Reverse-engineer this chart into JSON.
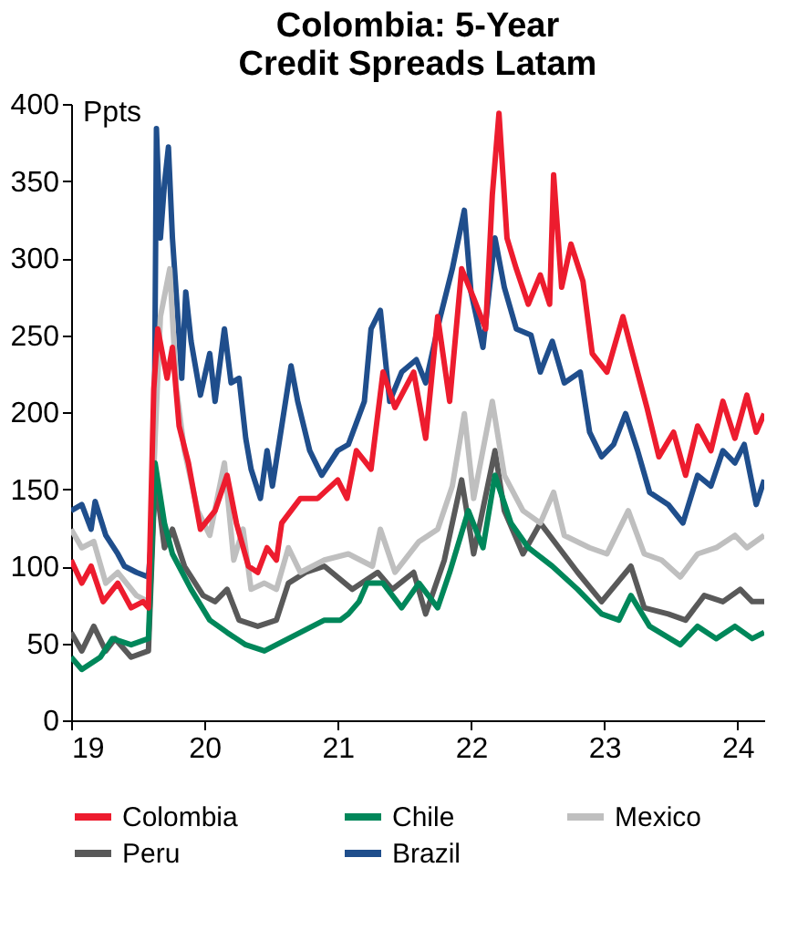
{
  "chart_data": {
    "type": "line",
    "title": "Colombia: 5-Year\nCredit Spreads Latam",
    "ylabel": "Ppts",
    "xlim": [
      19,
      24.2
    ],
    "xticks": [
      19,
      20,
      21,
      22,
      23,
      24
    ],
    "ylim": [
      0,
      400
    ],
    "yticks": [
      0,
      50,
      100,
      150,
      200,
      250,
      300,
      350,
      400
    ],
    "grid": false,
    "legend": "bottom",
    "marker": "none",
    "line_style": "solid",
    "series": [
      {
        "name": "Colombia",
        "color": "#ed1c2e",
        "x": [
          19.0,
          19.08,
          19.15,
          19.24,
          19.35,
          19.45,
          19.54,
          19.58,
          19.62,
          19.65,
          19.72,
          19.76,
          19.81,
          19.88,
          19.97,
          20.08,
          20.17,
          20.24,
          20.33,
          20.4,
          20.47,
          20.54,
          20.58,
          20.72,
          20.85,
          21.0,
          21.07,
          21.14,
          21.25,
          21.34,
          21.43,
          21.57,
          21.66,
          21.75,
          21.84,
          21.93,
          22.02,
          22.11,
          22.16,
          22.21,
          22.27,
          22.34,
          22.43,
          22.52,
          22.59,
          22.62,
          22.68,
          22.75,
          22.84,
          22.91,
          23.02,
          23.14,
          23.2,
          23.32,
          23.41,
          23.52,
          23.61,
          23.7,
          23.8,
          23.89,
          23.98,
          24.07,
          24.14,
          24.2
        ],
        "values": [
          104,
          89,
          100,
          77,
          89,
          73,
          77,
          73,
          215,
          254,
          222,
          242,
          191,
          167,
          124,
          136,
          159,
          128,
          100,
          96,
          112,
          104,
          128,
          144,
          144,
          156,
          144,
          175,
          163,
          226,
          203,
          226,
          183,
          262,
          207,
          293,
          274,
          254,
          341,
          394,
          313,
          293,
          270,
          289,
          270,
          354,
          281,
          309,
          285,
          238,
          226,
          262,
          242,
          203,
          171,
          187,
          159,
          191,
          175,
          207,
          183,
          211,
          187,
          199
        ]
      },
      {
        "name": "Chile",
        "color": "#00875a",
        "x": [
          19.0,
          19.08,
          19.22,
          19.31,
          19.45,
          19.58,
          19.63,
          19.7,
          19.76,
          19.9,
          20.04,
          20.17,
          20.31,
          20.45,
          20.54,
          20.72,
          20.9,
          21.02,
          21.08,
          21.16,
          21.22,
          21.34,
          21.48,
          21.61,
          21.75,
          21.84,
          21.98,
          22.09,
          22.18,
          22.3,
          22.43,
          22.61,
          22.8,
          22.98,
          23.11,
          23.2,
          23.34,
          23.57,
          23.7,
          23.84,
          23.98,
          24.11,
          24.2
        ],
        "values": [
          41,
          33,
          41,
          53,
          49,
          53,
          167,
          128,
          108,
          85,
          65,
          57,
          49,
          45,
          49,
          57,
          65,
          65,
          69,
          77,
          89,
          89,
          73,
          89,
          73,
          96,
          136,
          112,
          159,
          128,
          112,
          100,
          85,
          69,
          65,
          81,
          61,
          49,
          61,
          53,
          61,
          53,
          57
        ]
      },
      {
        "name": "Mexico",
        "color": "#bfbfbf",
        "x": [
          19.0,
          19.08,
          19.17,
          19.26,
          19.35,
          19.49,
          19.58,
          19.63,
          19.67,
          19.74,
          19.79,
          19.85,
          19.95,
          20.04,
          20.15,
          20.22,
          20.29,
          20.35,
          20.45,
          20.54,
          20.63,
          20.72,
          20.9,
          21.08,
          21.26,
          21.32,
          21.43,
          21.61,
          21.75,
          21.86,
          21.95,
          22.02,
          22.16,
          22.25,
          22.39,
          22.52,
          22.62,
          22.7,
          22.89,
          23.02,
          23.18,
          23.3,
          23.43,
          23.57,
          23.7,
          23.84,
          23.98,
          24.07,
          24.2
        ],
        "values": [
          124,
          112,
          116,
          89,
          96,
          81,
          77,
          183,
          262,
          293,
          215,
          175,
          136,
          120,
          167,
          104,
          124,
          85,
          89,
          85,
          112,
          96,
          104,
          108,
          100,
          124,
          96,
          116,
          124,
          152,
          199,
          144,
          207,
          159,
          136,
          128,
          148,
          120,
          112,
          108,
          136,
          108,
          104,
          93,
          108,
          112,
          120,
          112,
          120
        ]
      },
      {
        "name": "Peru",
        "color": "#595959",
        "x": [
          19.0,
          19.08,
          19.17,
          19.26,
          19.33,
          19.45,
          19.58,
          19.63,
          19.7,
          19.76,
          19.85,
          19.99,
          20.08,
          20.17,
          20.26,
          20.4,
          20.54,
          20.63,
          20.76,
          20.9,
          21.11,
          21.3,
          21.41,
          21.57,
          21.66,
          21.8,
          21.93,
          22.02,
          22.18,
          22.25,
          22.39,
          22.52,
          22.66,
          22.8,
          22.98,
          23.2,
          23.3,
          23.48,
          23.61,
          23.75,
          23.89,
          24.02,
          24.11,
          24.2
        ],
        "values": [
          57,
          45,
          61,
          45,
          53,
          41,
          45,
          159,
          112,
          124,
          100,
          81,
          77,
          85,
          65,
          61,
          65,
          89,
          96,
          100,
          85,
          96,
          85,
          96,
          69,
          104,
          156,
          108,
          175,
          136,
          108,
          128,
          112,
          96,
          77,
          100,
          73,
          69,
          65,
          81,
          77,
          85,
          77,
          77
        ]
      },
      {
        "name": "Brazil",
        "color": "#1f4e8c",
        "x": [
          19.0,
          19.08,
          19.15,
          19.18,
          19.26,
          19.35,
          19.4,
          19.49,
          19.58,
          19.62,
          19.64,
          19.67,
          19.7,
          19.73,
          19.76,
          19.8,
          19.83,
          19.86,
          19.9,
          19.97,
          20.04,
          20.08,
          20.15,
          20.2,
          20.26,
          20.31,
          20.35,
          20.42,
          20.47,
          20.51,
          20.58,
          20.65,
          20.7,
          20.79,
          20.88,
          21.0,
          21.08,
          21.2,
          21.25,
          21.32,
          21.39,
          21.48,
          21.59,
          21.66,
          21.77,
          21.86,
          21.95,
          22.0,
          22.09,
          22.18,
          22.25,
          22.34,
          22.45,
          22.52,
          22.61,
          22.7,
          22.82,
          22.89,
          22.98,
          23.07,
          23.16,
          23.25,
          23.34,
          23.48,
          23.59,
          23.7,
          23.8,
          23.89,
          23.98,
          24.05,
          24.14,
          24.2
        ],
        "values": [
          136,
          140,
          124,
          142,
          120,
          108,
          100,
          96,
          93,
          136,
          384,
          313,
          348,
          372,
          313,
          262,
          222,
          278,
          246,
          211,
          238,
          207,
          254,
          219,
          222,
          183,
          163,
          144,
          175,
          152,
          191,
          230,
          207,
          175,
          159,
          175,
          179,
          207,
          254,
          266,
          207,
          226,
          234,
          219,
          262,
          293,
          331,
          278,
          242,
          313,
          281,
          254,
          250,
          226,
          246,
          219,
          226,
          187,
          171,
          179,
          199,
          175,
          148,
          140,
          128,
          159,
          152,
          175,
          167,
          179,
          140,
          156
        ]
      }
    ]
  }
}
